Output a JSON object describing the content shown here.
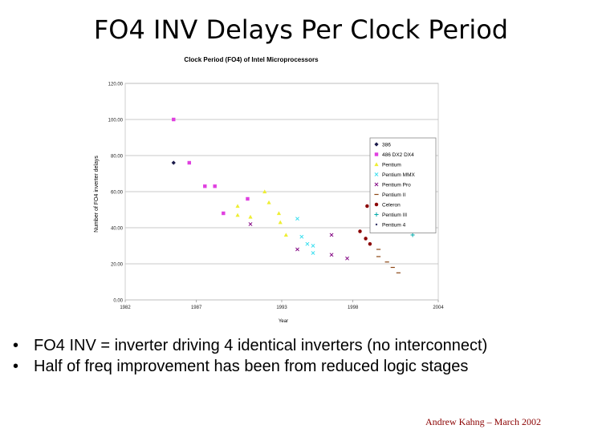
{
  "slide": {
    "title": "FO4 INV Delays Per Clock Period",
    "bullets": [
      "FO4 INV = inverter driving 4 identical inverters (no interconnect)",
      "Half of freq improvement has been from reduced logic stages"
    ],
    "bullet_symbol": "•",
    "footer": "Andrew Kahng – March 2002"
  },
  "chart_data": {
    "type": "scatter",
    "title": "Clock Period (FO4) of Intel Microprocessors",
    "xlabel": "Year",
    "ylabel": "Number of FO4 inverter delays",
    "xlim": [
      1982,
      2004
    ],
    "ylim": [
      0,
      120
    ],
    "x_ticks": [
      1982,
      1987,
      1993,
      1998,
      2004
    ],
    "x_tick_labels": [
      "1982",
      "1987",
      "1993",
      "1998",
      "2004"
    ],
    "y_ticks": [
      0,
      20,
      40,
      60,
      80,
      100,
      120
    ],
    "y_tick_labels": [
      "0.00",
      "20.00",
      "40.00",
      "60.00",
      "80.00",
      "100.00",
      "120.00"
    ],
    "grid": "horizontal",
    "legend_position": "right",
    "series": [
      {
        "name": "386",
        "color": "#1a1a4a",
        "marker": "diamond",
        "points": [
          [
            1985.4,
            76
          ]
        ]
      },
      {
        "name": "486 DX2 DX4",
        "color": "#e040e0",
        "marker": "square",
        "points": [
          [
            1985.4,
            100
          ],
          [
            1986.5,
            76
          ],
          [
            1987.6,
            63
          ],
          [
            1988.3,
            63
          ],
          [
            1988.9,
            48
          ],
          [
            1990.6,
            56
          ]
        ]
      },
      {
        "name": "Pentium",
        "color": "#eeee33",
        "marker": "triangle",
        "points": [
          [
            1989.9,
            52
          ],
          [
            1989.9,
            47
          ],
          [
            1990.8,
            46
          ],
          [
            1991.8,
            60
          ],
          [
            1992.1,
            54
          ],
          [
            1992.8,
            48
          ],
          [
            1992.9,
            43
          ],
          [
            1993.3,
            36
          ]
        ]
      },
      {
        "name": "Pentium MMX",
        "color": "#33ddee",
        "marker": "x",
        "points": [
          [
            1994.1,
            45
          ],
          [
            1994.4,
            35
          ],
          [
            1994.8,
            31
          ],
          [
            1995.2,
            30
          ],
          [
            1995.2,
            26
          ]
        ]
      },
      {
        "name": "Pentium Pro",
        "color": "#800080",
        "marker": "x",
        "points": [
          [
            1994.1,
            28
          ],
          [
            1996.5,
            36
          ],
          [
            1996.5,
            25
          ],
          [
            1997.6,
            23
          ],
          [
            1990.8,
            42
          ]
        ]
      },
      {
        "name": "Pentium II",
        "color": "#8b4513",
        "marker": "dash",
        "points": [
          [
            1999.8,
            28
          ],
          [
            1999.8,
            24
          ],
          [
            2000.4,
            21
          ],
          [
            2000.8,
            18
          ],
          [
            2001.2,
            15
          ]
        ]
      },
      {
        "name": "Celeron",
        "color": "#8b0000",
        "marker": "circle",
        "points": [
          [
            1999.0,
            52
          ],
          [
            1998.5,
            38
          ],
          [
            1998.9,
            34
          ],
          [
            1999.2,
            31
          ],
          [
            2000.7,
            72
          ],
          [
            2000.9,
            60
          ],
          [
            2001.3,
            51
          ],
          [
            2001.6,
            44
          ],
          [
            2002.0,
            40
          ]
        ]
      },
      {
        "name": "Pentium III",
        "color": "#00aaaa",
        "marker": "plus",
        "points": [
          [
            2000.0,
            71
          ],
          [
            2000.1,
            60
          ],
          [
            2000.5,
            55
          ],
          [
            2000.3,
            51
          ],
          [
            2000.8,
            47
          ],
          [
            2000.8,
            44
          ],
          [
            2001.1,
            39
          ],
          [
            2002.2,
            36
          ]
        ]
      },
      {
        "name": "Pentium 4",
        "color": "#333366",
        "marker": "dot",
        "points": []
      }
    ]
  }
}
